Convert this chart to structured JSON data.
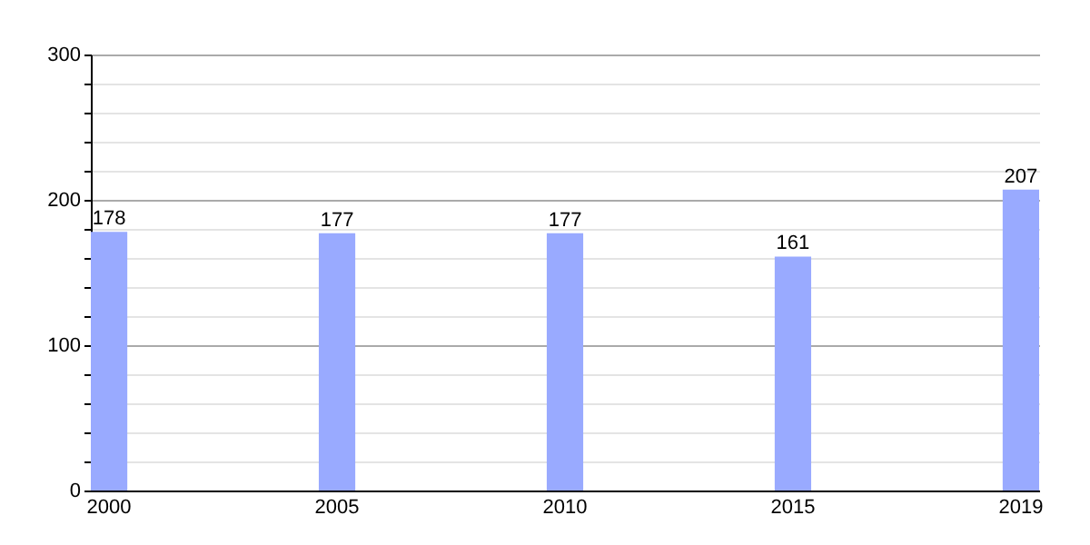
{
  "chart_data": {
    "type": "bar",
    "categories": [
      "2000",
      "2005",
      "2010",
      "2015",
      "2019"
    ],
    "values": [
      178,
      177,
      177,
      161,
      207
    ],
    "color": "#99aaff",
    "ylim": [
      0,
      300
    ],
    "yticks": [
      0,
      {
        "value": 20,
        "label": null
      },
      {
        "value": 40,
        "label": null
      },
      {
        "value": 60,
        "label": null
      },
      {
        "value": 80,
        "label": null
      },
      100,
      {
        "value": 120,
        "label": null
      },
      {
        "value": 140,
        "label": null
      },
      {
        "value": 160,
        "label": null
      },
      {
        "value": 180,
        "label": null
      },
      200,
      {
        "value": 220,
        "label": null
      },
      {
        "value": 240,
        "label": null
      },
      {
        "value": 260,
        "label": null
      },
      {
        "value": 280,
        "label": null
      },
      300
    ],
    "grid": true,
    "data_labels": true
  }
}
